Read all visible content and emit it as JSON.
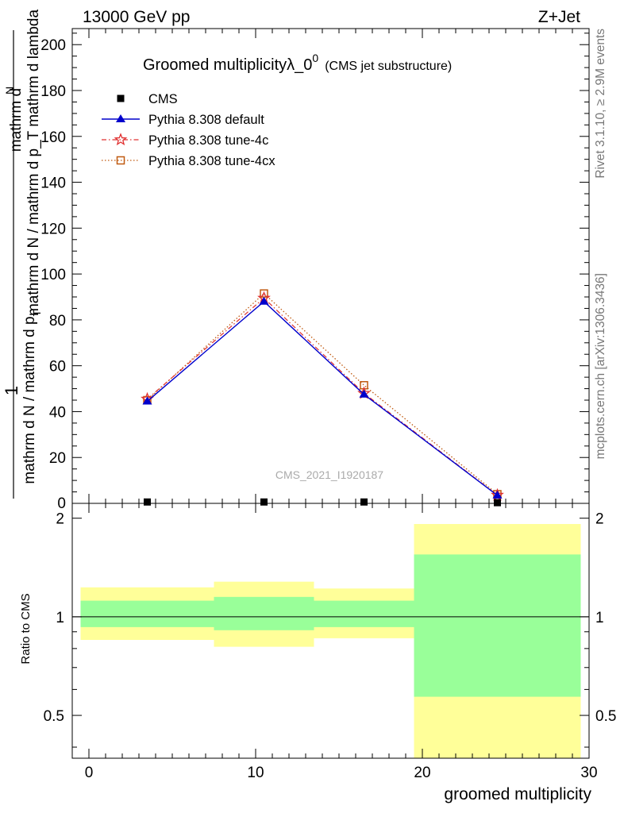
{
  "header": {
    "left": "13000 GeV pp",
    "right": "Z+Jet"
  },
  "side_text": {
    "rivet": "Rivet 3.1.10, ≥ 2.9M events",
    "mcplots": "mcplots.cern.ch [arXiv:1306.3436]"
  },
  "watermark": "CMS_2021_I1920187",
  "colors": {
    "cms": "#000000",
    "default": "#0000cc",
    "tune4c": "#e03030",
    "tune4cx": "#c05a10",
    "band_inner": "#99ff99",
    "band_outer": "#ffff99"
  },
  "chart_data": [
    {
      "type": "line",
      "title": "Groomed multiplicityλ_0",
      "title_sup": "0",
      "title_suffix": "(CMS jet substructure)",
      "ylabel_main": "mathrm d N / mathrm d p_T mathrm d lambda",
      "ylabel_sub": "T",
      "ylabel_top1": "mathrm d",
      "ylabel_top2": "N",
      "ylabel_num": "1",
      "ylabel_denom": "mathrm d N / mathrm d p",
      "ylabel_denom_sub": "T",
      "xlim": [
        -1,
        30
      ],
      "ylim": [
        0,
        207
      ],
      "yticks": [
        "20",
        "40",
        "60",
        "80",
        "100",
        "120",
        "140",
        "160",
        "180",
        "200"
      ],
      "ytick_values": [
        20,
        40,
        60,
        80,
        100,
        120,
        140,
        160,
        180,
        200
      ],
      "ytick_zero": "0",
      "legend_position": "top-left",
      "series": [
        {
          "name": "CMS",
          "x": [
            3.5,
            10.5,
            16.5,
            24.5
          ],
          "y": [
            0.6,
            0.6,
            0.6,
            0.3
          ],
          "style": "square-marker"
        },
        {
          "name": "Pythia 8.308 default",
          "x": [
            3.5,
            10.5,
            16.5,
            24.5
          ],
          "y": [
            44.5,
            88.0,
            47.5,
            3.5
          ],
          "style": "solid-triangle"
        },
        {
          "name": "Pythia 8.308 tune-4c",
          "x": [
            3.5,
            10.5,
            16.5,
            24.5
          ],
          "y": [
            45.5,
            89.5,
            48.0,
            3.6
          ],
          "style": "dashdot-star"
        },
        {
          "name": "Pythia 8.308 tune-4cx",
          "x": [
            3.5,
            10.5,
            16.5,
            24.5
          ],
          "y": [
            45.0,
            91.5,
            51.5,
            4.0
          ],
          "style": "dotted-square"
        }
      ]
    },
    {
      "type": "area",
      "ylabel": "Ratio to CMS",
      "xlabel": "groomed multiplicity",
      "xlim": [
        -1,
        30
      ],
      "ylim": [
        0.37,
        2.22
      ],
      "log_y": true,
      "xticks": [
        "0",
        "10",
        "20",
        "30"
      ],
      "xtick_values": [
        0,
        10,
        20,
        30
      ],
      "yticks": [
        "0.5",
        "1",
        "2"
      ],
      "ytick_values": [
        0.5,
        1,
        2
      ],
      "bins": [
        {
          "x0": -0.5,
          "x1": 7.5,
          "inner": [
            0.93,
            1.12
          ],
          "outer": [
            0.85,
            1.23
          ]
        },
        {
          "x0": 7.5,
          "x1": 13.5,
          "inner": [
            0.91,
            1.15
          ],
          "outer": [
            0.81,
            1.28
          ]
        },
        {
          "x0": 13.5,
          "x1": 19.5,
          "inner": [
            0.93,
            1.12
          ],
          "outer": [
            0.86,
            1.22
          ]
        },
        {
          "x0": 19.5,
          "x1": 29.5,
          "inner": [
            0.57,
            1.55
          ],
          "outer": [
            0.37,
            1.92
          ]
        }
      ]
    }
  ]
}
